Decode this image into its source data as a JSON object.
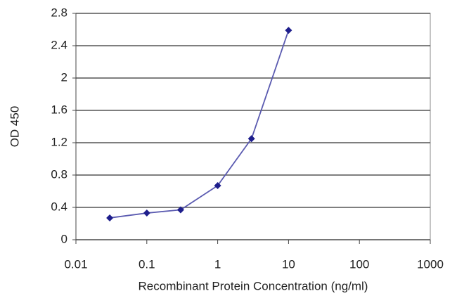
{
  "chart_data": {
    "type": "line",
    "x_label": "Recombinant Protein Concentration (ng/ml)",
    "y_label": "OD 450",
    "x": [
      0.03,
      0.1,
      0.3,
      1,
      3,
      10
    ],
    "series": [
      {
        "name": "OD 450",
        "color": "#5a5ab0",
        "marker_color": "#1e1e8c",
        "values": [
          0.27,
          0.33,
          0.37,
          0.67,
          1.25,
          2.59
        ]
      }
    ],
    "xscale": "log",
    "xlim": [
      0.01,
      1000
    ],
    "xticks": [
      0.01,
      0.1,
      1,
      10,
      100,
      1000
    ],
    "ylim": [
      0,
      2.8
    ],
    "yticks": [
      0,
      0.4,
      0.8,
      1.2,
      1.6,
      2,
      2.4,
      2.8
    ],
    "grid": true
  }
}
